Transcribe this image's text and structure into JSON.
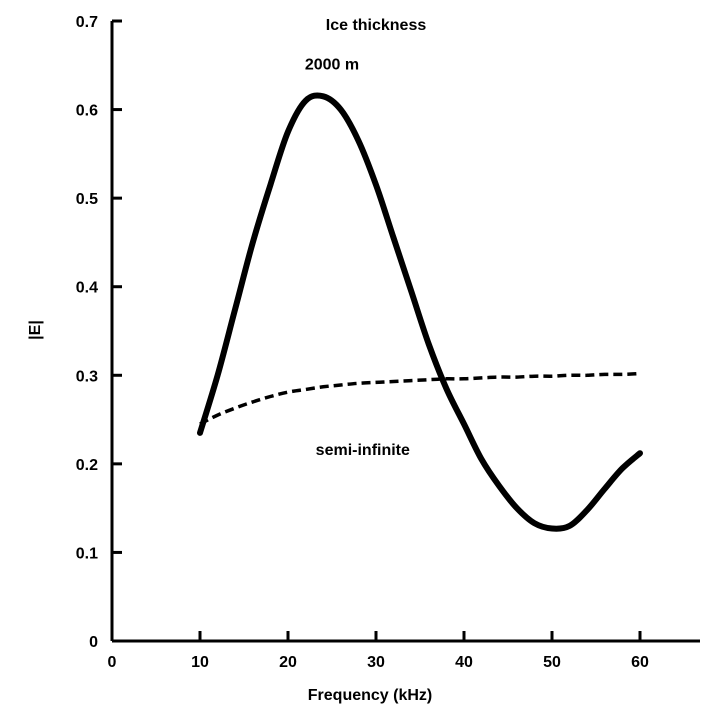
{
  "chart_data": {
    "type": "line",
    "title": "",
    "xlabel": "Frequency (kHz)",
    "ylabel": "|E|",
    "xlim": [
      0,
      60
    ],
    "ylim": [
      0,
      0.7
    ],
    "x_ticks": [
      0,
      10,
      20,
      30,
      40,
      50,
      60
    ],
    "x_tick_labels": [
      "0",
      "10",
      "20",
      "30",
      "40",
      "50",
      "60"
    ],
    "y_ticks": [
      0,
      0.1,
      0.2,
      0.3,
      0.4,
      0.5,
      0.6,
      0.7
    ],
    "y_tick_labels": [
      "0",
      "0.1",
      "0.2",
      "0.3",
      "0.4",
      "0.5",
      "0.6",
      "0.7"
    ],
    "grid": false,
    "annotations": [
      {
        "text": "Ice thickness",
        "x": 30,
        "y": 0.69
      },
      {
        "text": "2000 m",
        "x": 25,
        "y": 0.645
      },
      {
        "text": "semi-infinite",
        "x": 28.5,
        "y": 0.21
      }
    ],
    "series": [
      {
        "style": "solid",
        "x": [
          10,
          12,
          14,
          16,
          18,
          20,
          22,
          24,
          26,
          28,
          30,
          32,
          34,
          36,
          38,
          40,
          42,
          44,
          46,
          48,
          50,
          52,
          54,
          56,
          58,
          60
        ],
        "y": [
          0.235,
          0.3,
          0.375,
          0.45,
          0.515,
          0.575,
          0.61,
          0.615,
          0.6,
          0.565,
          0.515,
          0.455,
          0.395,
          0.335,
          0.285,
          0.245,
          0.205,
          0.175,
          0.15,
          0.133,
          0.127,
          0.13,
          0.148,
          0.172,
          0.195,
          0.212
        ]
      },
      {
        "style": "dashed",
        "x": [
          10,
          12,
          14,
          16,
          18,
          20,
          22,
          24,
          26,
          28,
          30,
          32,
          34,
          36,
          38,
          40,
          42,
          44,
          46,
          48,
          50,
          52,
          54,
          56,
          58,
          60
        ],
        "y": [
          0.245,
          0.255,
          0.263,
          0.27,
          0.276,
          0.281,
          0.284,
          0.287,
          0.289,
          0.291,
          0.292,
          0.293,
          0.294,
          0.295,
          0.296,
          0.296,
          0.297,
          0.298,
          0.298,
          0.299,
          0.299,
          0.3,
          0.3,
          0.301,
          0.301,
          0.302
        ]
      }
    ]
  }
}
